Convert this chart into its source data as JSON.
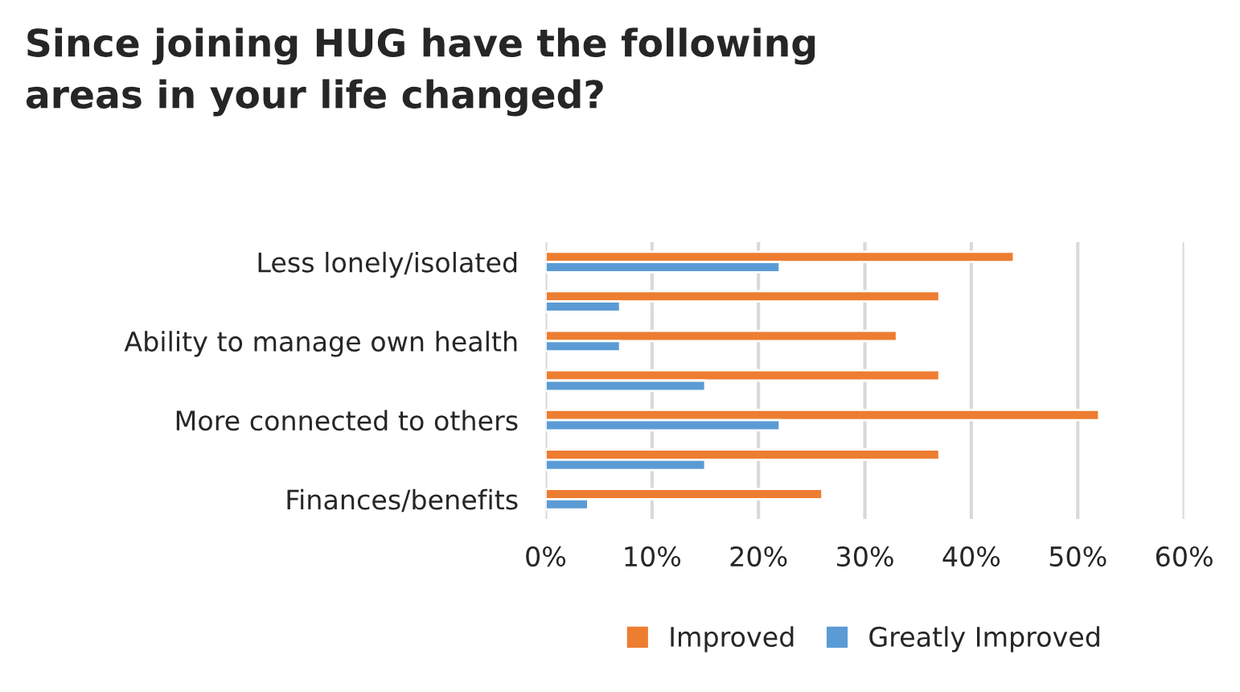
{
  "chart_data": {
    "type": "bar",
    "orientation": "horizontal",
    "title": "Since joining HUG have the following\nareas in your life changed?",
    "categories": [
      "Less lonely/isolated",
      null,
      "Ability to manage own health",
      null,
      "More connected to others",
      null,
      "Finances/benefits"
    ],
    "series": [
      {
        "name": "Improved",
        "color": "#ed7d31",
        "values": [
          44,
          37,
          33,
          37,
          52,
          37,
          26
        ]
      },
      {
        "name": "Greatly Improved",
        "color": "#5b9bd5",
        "values": [
          22,
          7,
          7,
          15,
          22,
          15,
          4
        ]
      }
    ],
    "xlim": [
      0,
      60
    ],
    "xticks": [
      {
        "value": 0,
        "label": "0%"
      },
      {
        "value": 10,
        "label": "10%"
      },
      {
        "value": 20,
        "label": "20%"
      },
      {
        "value": 30,
        "label": "30%"
      },
      {
        "value": 40,
        "label": "40%"
      },
      {
        "value": 50,
        "label": "50%"
      },
      {
        "value": 60,
        "label": "60%"
      }
    ],
    "grid": "x",
    "legend": "bottom"
  }
}
